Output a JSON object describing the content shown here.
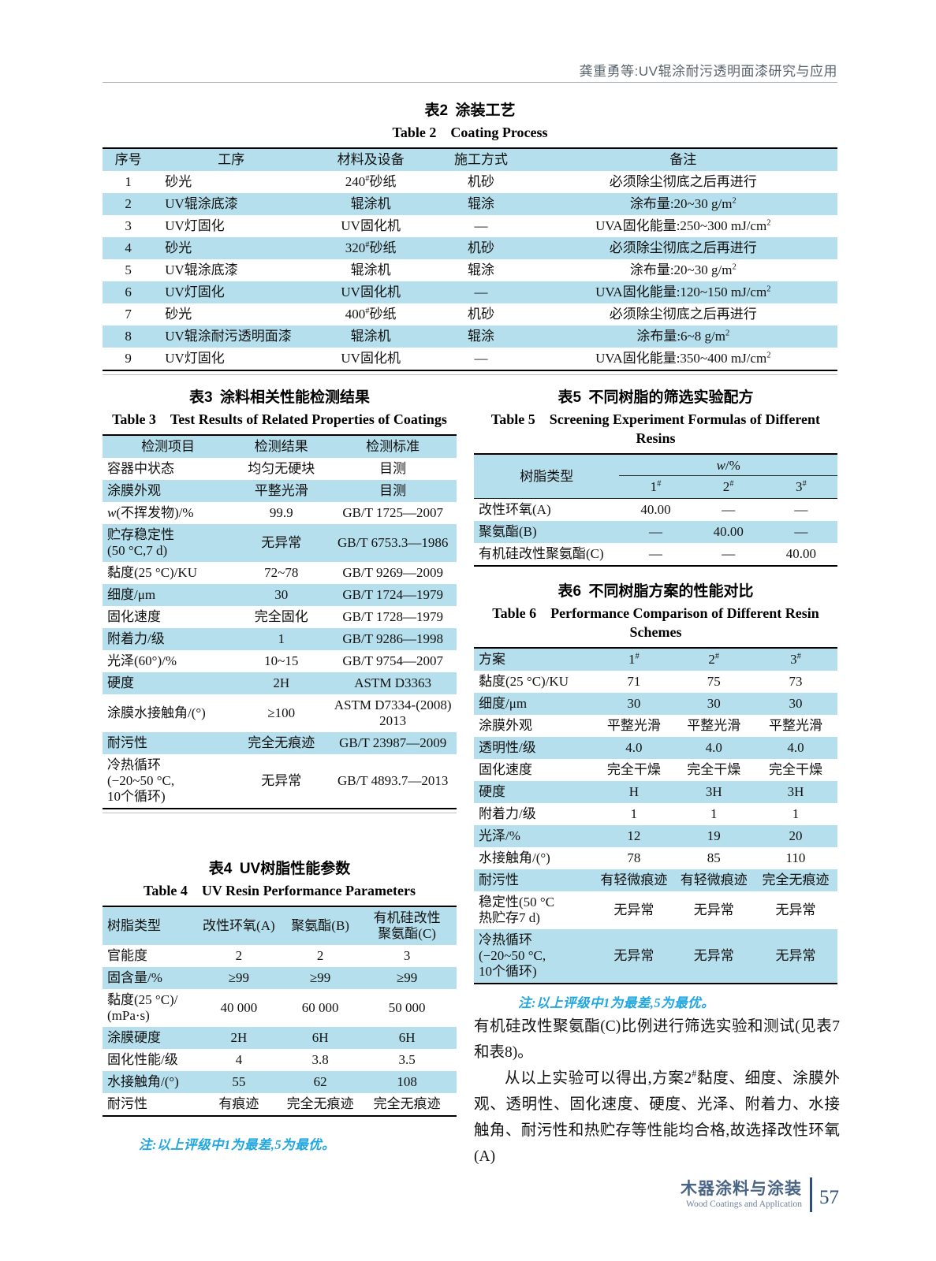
{
  "page": {
    "running_head": "龚重勇等:UV辊涂耐污透明面漆研究与应用",
    "rating_note": "注:以上评级中1为最差,5为最优。"
  },
  "tables": {
    "t2": {
      "caption_zh": "表2 涂装工艺",
      "caption_en": "Table 2  Coating Process",
      "headers": [
        "序号",
        "工序",
        "材料及设备",
        "施工方式",
        "备注"
      ],
      "rows": [
        [
          "1",
          "砂光",
          "240^{#}砂纸",
          "机砂",
          "必须除尘彻底之后再进行"
        ],
        [
          "2",
          "UV辊涂底漆",
          "辊涂机",
          "辊涂",
          "涂布量:20~30 g/m^{2}"
        ],
        [
          "3",
          "UV灯固化",
          "UV固化机",
          "—",
          "UVA固化能量:250~300 mJ/cm^{2}"
        ],
        [
          "4",
          "砂光",
          "320^{#}砂纸",
          "机砂",
          "必须除尘彻底之后再进行"
        ],
        [
          "5",
          "UV辊涂底漆",
          "辊涂机",
          "辊涂",
          "涂布量:20~30 g/m^{2}"
        ],
        [
          "6",
          "UV灯固化",
          "UV固化机",
          "—",
          "UVA固化能量:120~150 mJ/cm^{2}"
        ],
        [
          "7",
          "砂光",
          "400^{#}砂纸",
          "机砂",
          "必须除尘彻底之后再进行"
        ],
        [
          "8",
          "UV辊涂耐污透明面漆",
          "辊涂机",
          "辊涂",
          "涂布量:6~8 g/m^{2}"
        ],
        [
          "9",
          "UV灯固化",
          "UV固化机",
          "—",
          "UVA固化能量:350~400 mJ/cm^{2}"
        ]
      ]
    },
    "t3": {
      "caption_zh": "表3 涂料相关性能检测结果",
      "caption_en": "Table 3  Test Results of Related Properties of Coatings",
      "headers": [
        "检测项目",
        "检测结果",
        "检测标准"
      ],
      "rows": [
        [
          "容器中状态",
          "均匀无硬块",
          "目测"
        ],
        [
          "涂膜外观",
          "平整光滑",
          "目测"
        ],
        [
          "«w»(不挥发物)/%",
          "99.9",
          "GB/T 1725—2007"
        ],
        [
          "贮存稳定性\n(50 °C,7 d)",
          "无异常",
          "GB/T 6753.3—1986"
        ],
        [
          "黏度(25 °C)/KU",
          "72~78",
          "GB/T 9269—2009"
        ],
        [
          "细度/μm",
          "30",
          "GB/T 1724—1979"
        ],
        [
          "固化速度",
          "完全固化",
          "GB/T 1728—1979"
        ],
        [
          "附着力/级",
          "1",
          "GB/T 9286—1998"
        ],
        [
          "光泽(60°)/%",
          "10~15",
          "GB/T 9754—2007"
        ],
        [
          "硬度",
          "2H",
          "ASTM D3363"
        ],
        [
          "涂膜水接触角/(°)",
          "≥100",
          "ASTM D7334-(2008)\n2013"
        ],
        [
          "耐污性",
          "完全无痕迹",
          "GB/T 23987—2009"
        ],
        [
          "冷热循环\n(−20~50 °C,\n10个循环)",
          "无异常",
          "GB/T 4893.7—2013"
        ]
      ]
    },
    "t4": {
      "caption_zh": "表4 UV树脂性能参数",
      "caption_en": "Table 4  UV Resin Performance Parameters",
      "headers": [
        "树脂类型",
        "改性环氧(A)",
        "聚氨酯(B)",
        "有机硅改性\n聚氨酯(C)"
      ],
      "rows": [
        [
          "官能度",
          "2",
          "2",
          "3"
        ],
        [
          "固含量/%",
          "≥99",
          "≥99",
          "≥99"
        ],
        [
          "黏度(25 °C)/\n(mPa·s)",
          "40 000",
          "60 000",
          "50 000"
        ],
        [
          "涂膜硬度",
          "2H",
          "6H",
          "6H"
        ],
        [
          "固化性能/级",
          "4",
          "3.8",
          "3.5"
        ],
        [
          "水接触角/(°)",
          "55",
          "62",
          "108"
        ],
        [
          "耐污性",
          "有痕迹",
          "完全无痕迹",
          "完全无痕迹"
        ]
      ]
    },
    "t5": {
      "caption_zh": "表5 不同树脂的筛选实验配方",
      "caption_en": "Table 5  Screening Experiment Formulas of Different\nResins",
      "header": {
        "type": "树脂类型",
        "w_label": "«w»/%",
        "cols": [
          "1^{#}",
          "2^{#}",
          "3^{#}"
        ]
      },
      "rows": [
        [
          "改性环氧(A)",
          "40.00",
          "—",
          "—"
        ],
        [
          "聚氨酯(B)",
          "—",
          "40.00",
          "—"
        ],
        [
          "有机硅改性聚氨酯(C)",
          "—",
          "—",
          "40.00"
        ]
      ]
    },
    "t6": {
      "caption_zh": "表6 不同树脂方案的性能对比",
      "caption_en": "Table 6  Performance Comparison of Different Resin\nSchemes",
      "headers": [
        "方案",
        "1^{#}",
        "2^{#}",
        "3^{#}"
      ],
      "rows": [
        [
          "黏度(25 °C)/KU",
          "71",
          "75",
          "73"
        ],
        [
          "细度/μm",
          "30",
          "30",
          "30"
        ],
        [
          "涂膜外观",
          "平整光滑",
          "平整光滑",
          "平整光滑"
        ],
        [
          "透明性/级",
          "4.0",
          "4.0",
          "4.0"
        ],
        [
          "固化速度",
          "完全干燥",
          "完全干燥",
          "完全干燥"
        ],
        [
          "硬度",
          "H",
          "3H",
          "3H"
        ],
        [
          "附着力/级",
          "1",
          "1",
          "1"
        ],
        [
          "光泽/%",
          "12",
          "19",
          "20"
        ],
        [
          "水接触角/(°)",
          "78",
          "85",
          "110"
        ],
        [
          "耐污性",
          "有轻微痕迹",
          "有轻微痕迹",
          "完全无痕迹"
        ],
        [
          "稳定性(50 °C\n热贮存7 d)",
          "无异常",
          "无异常",
          "无异常"
        ],
        [
          "冷热循环\n(−20~50 °C,\n10个循环)",
          "无异常",
          "无异常",
          "无异常"
        ]
      ]
    }
  },
  "body": {
    "p1": "有机硅改性聚氨酯(C)比例进行筛选实验和测试(见表7和表8)。",
    "p2": "从以上实验可以得出,方案2^{#}黏度、细度、涂膜外观、透明性、固化速度、硬度、光泽、附着力、水接触角、耐污性和热贮存等性能均合格,故选择改性环氧(A)"
  },
  "footer": {
    "journal_zh": "木器涂料与涂装",
    "journal_en": "Wood Coatings and Application",
    "page_number": "57"
  }
}
